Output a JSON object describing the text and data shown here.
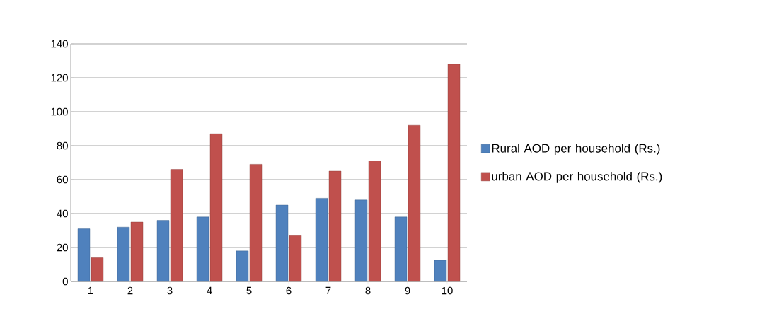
{
  "chart_data": {
    "type": "bar",
    "categories": [
      "1",
      "2",
      "3",
      "4",
      "5",
      "6",
      "7",
      "8",
      "9",
      "10"
    ],
    "series": [
      {
        "name": "Rural AOD per household (Rs.)",
        "color": "#4f81bd",
        "values": [
          31,
          32,
          36,
          38,
          18,
          45,
          49,
          48,
          38,
          12.5
        ]
      },
      {
        "name": "urban AOD per household (Rs.)",
        "color": "#c0504d",
        "values": [
          14,
          35,
          66,
          87,
          69,
          27,
          65,
          71,
          92,
          128
        ]
      }
    ],
    "ylim": [
      0,
      140
    ],
    "yticks": [
      0,
      20,
      40,
      60,
      80,
      100,
      120,
      140
    ],
    "grid": "y",
    "legend": "right"
  }
}
